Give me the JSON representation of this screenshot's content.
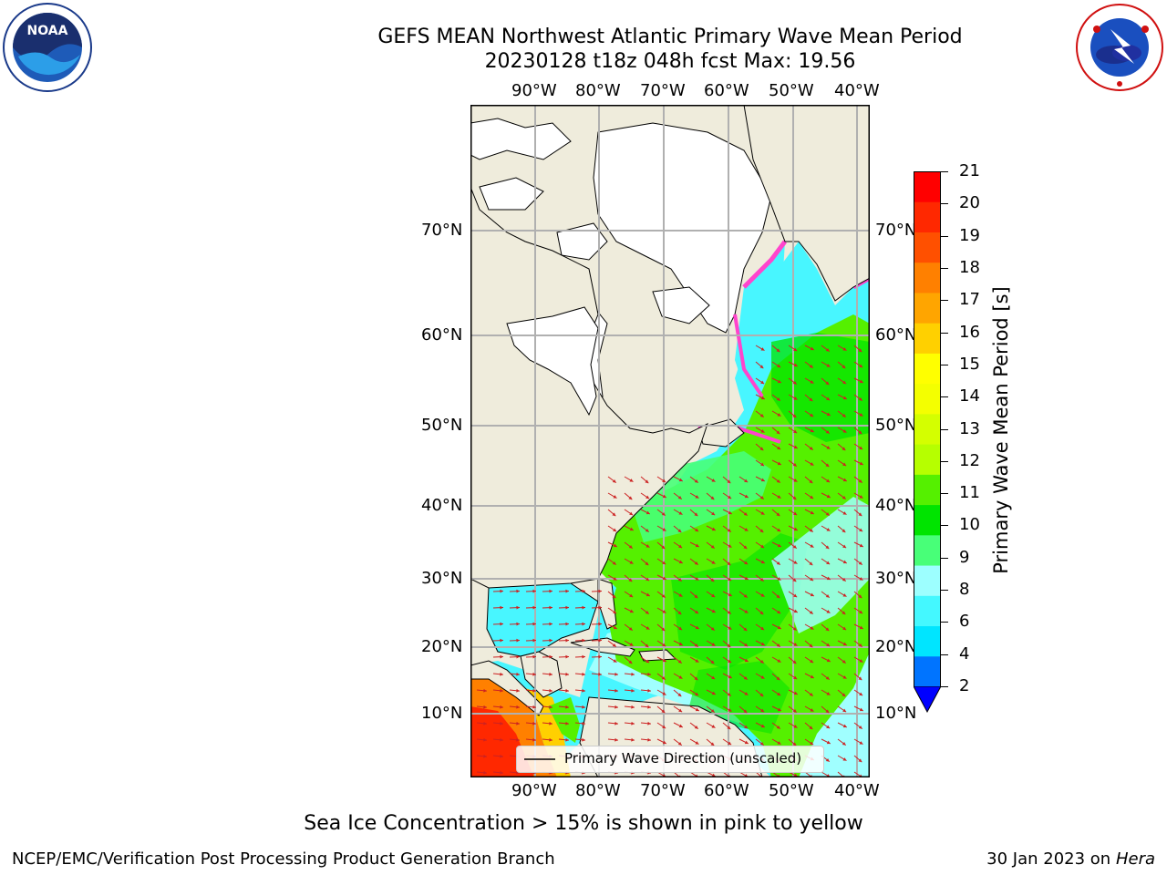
{
  "header": {
    "title_line1": "GEFS MEAN Northwest Atlantic Primary Wave Mean Period",
    "title_line2": "20230128 t18z 048h fcst   Max: 19.56"
  },
  "logos": {
    "left": "noaa-logo-icon",
    "right": "nws-logo-icon"
  },
  "map": {
    "top_lon_labels": [
      "90°W",
      "80°W",
      "70°W",
      "60°W",
      "50°W",
      "40°W"
    ],
    "bottom_lon_labels": [
      "90°W",
      "80°W",
      "70°W",
      "60°W",
      "50°W",
      "40°W"
    ],
    "left_lat_labels": [
      "70°N",
      "60°N",
      "50°N",
      "40°N",
      "30°N",
      "20°N",
      "10°N"
    ],
    "right_lat_labels": [
      "70°N",
      "60°N",
      "50°N",
      "40°N",
      "30°N",
      "20°N",
      "10°N"
    ],
    "legend_label": "Primary Wave Direction (unscaled)",
    "colors": {
      "land": "#efecdc",
      "ice": "#ffffff",
      "grid": "#b0b0b0",
      "arrow": "#cc2222",
      "ice_pink": "#ff44cc"
    }
  },
  "colorbar": {
    "label": "Primary Wave Mean Period [s]",
    "ticks": [
      "21",
      "20",
      "19",
      "18",
      "17",
      "16",
      "15",
      "14",
      "13",
      "12",
      "11",
      "10",
      "9",
      "8",
      "6",
      "4",
      "2"
    ],
    "colors_bottom_to_top": [
      "#0074ff",
      "#00e5ff",
      "#44f8ff",
      "#9dffff",
      "#48ff78",
      "#00e400",
      "#55f000",
      "#b6ff00",
      "#d4ff00",
      "#f4ff00",
      "#ffff00",
      "#ffd000",
      "#ffa500",
      "#ff8000",
      "#ff5000",
      "#ff2800",
      "#ff0000"
    ],
    "extend_color": "#0000ff"
  },
  "notes": {
    "sea_ice": "Sea Ice Concentration > 15% is shown in pink to yellow"
  },
  "footer": {
    "left": "NCEP/EMC/Verification Post Processing Product Generation Branch",
    "right_date": "30 Jan 2023 on",
    "right_host": "Hera"
  }
}
